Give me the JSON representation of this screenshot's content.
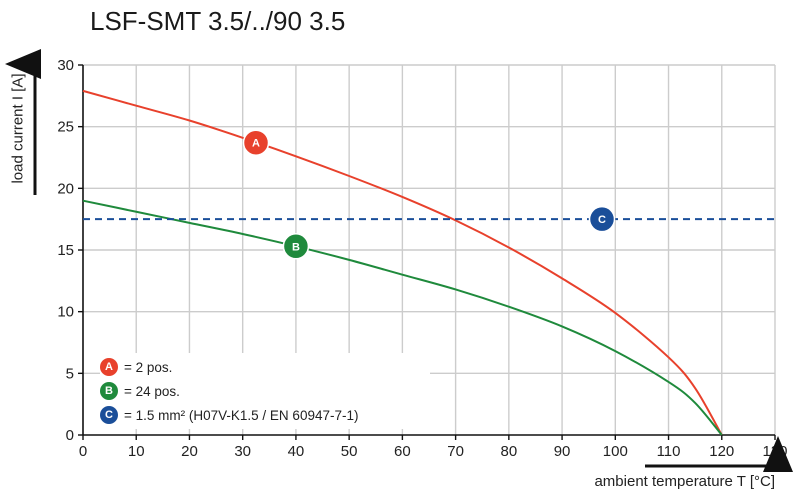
{
  "title": "LSF-SMT 3.5/../90 3.5",
  "ylabel": "load current I [A]",
  "xlabel": "ambient temperature T [°C]",
  "colors": {
    "A": "#e8412c",
    "B": "#1f8a3c",
    "C": "#1a4e99",
    "grid": "#cccccc"
  },
  "legend": [
    {
      "key": "A",
      "badge": "A",
      "text": "= 2 pos."
    },
    {
      "key": "B",
      "badge": "B",
      "text": "= 24 pos."
    },
    {
      "key": "C",
      "badge": "C",
      "text": "= 1.5 mm² (H07V-K1.5 / EN 60947-7-1)"
    }
  ],
  "chart_data": {
    "type": "line",
    "title": "LSF-SMT 3.5/../90 3.5",
    "xlabel": "ambient temperature T [°C]",
    "ylabel": "load current I [A]",
    "xlim": [
      0,
      130
    ],
    "ylim": [
      0,
      30
    ],
    "xticks": [
      0,
      10,
      20,
      30,
      40,
      50,
      60,
      70,
      80,
      90,
      100,
      110,
      120,
      130
    ],
    "yticks": [
      0,
      5,
      10,
      15,
      20,
      25,
      30
    ],
    "grid": true,
    "series": [
      {
        "key": "A",
        "x": [
          0,
          10,
          20,
          30,
          40,
          50,
          60,
          70,
          80,
          90,
          100,
          110,
          115,
          120
        ],
        "y": [
          27.9,
          26.7,
          25.5,
          24.1,
          22.6,
          21.0,
          19.3,
          17.4,
          15.2,
          12.7,
          9.9,
          6.3,
          3.8,
          0
        ]
      },
      {
        "key": "B",
        "x": [
          0,
          10,
          20,
          30,
          40,
          50,
          60,
          70,
          80,
          90,
          100,
          110,
          115,
          120
        ],
        "y": [
          19.0,
          18.1,
          17.2,
          16.3,
          15.3,
          14.2,
          13.0,
          11.8,
          10.4,
          8.8,
          6.8,
          4.3,
          2.6,
          0
        ]
      },
      {
        "key": "C",
        "style": "dashed",
        "x": [
          0,
          130
        ],
        "y": [
          17.5,
          17.5
        ]
      }
    ],
    "markers": [
      {
        "key": "A",
        "x": 32.5,
        "y": 23.7
      },
      {
        "key": "B",
        "x": 40,
        "y": 15.3
      },
      {
        "key": "C",
        "x": 97.5,
        "y": 17.5
      }
    ]
  }
}
